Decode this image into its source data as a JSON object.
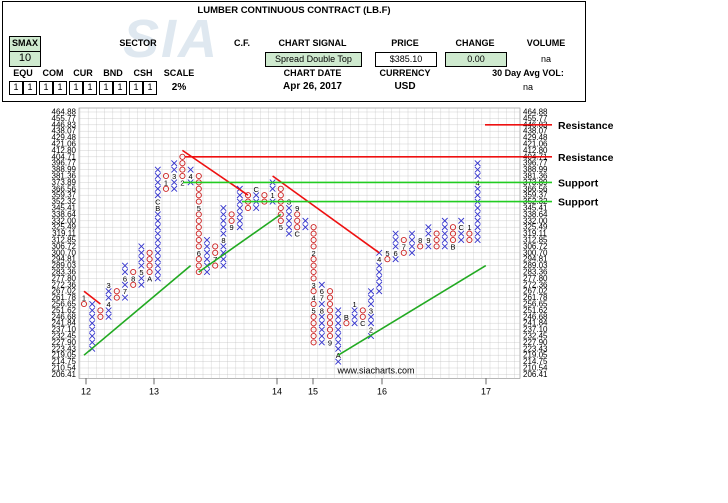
{
  "header": {
    "title": "LUMBER CONTINUOUS CONTRACT (LB.F)",
    "smax_label": "SMAX",
    "smax_value": "10",
    "sector_label": "SECTOR",
    "cf_label": "C.F.",
    "chart_signal_label": "CHART SIGNAL",
    "chart_signal_value": "Spread Double Top",
    "price_label": "PRICE",
    "price_value": "$385.10",
    "change_label": "CHANGE",
    "change_value": "0.00",
    "volume_label": "VOLUME",
    "volume_value": "na",
    "equ_label": "EQU",
    "equ_value": "1",
    "com_label": "COM",
    "com_value": "1",
    "cur_label": "CUR",
    "cur_value": "1",
    "bnd_label": "BND",
    "bnd_value": "1",
    "csh_label": "CSH",
    "csh_value": "1",
    "scale_label": "SCALE",
    "scale_value": "2%",
    "chart_date_label": "CHART DATE",
    "chart_date_value": "Apr 26, 2017",
    "currency_label": "CURRENCY",
    "currency_value": "USD",
    "avg_vol_label": "30 Day Avg VOL:",
    "avg_vol_value": "na"
  },
  "colors": {
    "x_mark": "#3333cc",
    "o_mark": "#cc2222",
    "resistance": "#ee1111",
    "support": "#22cc22",
    "trend": "#22aa22",
    "grid": "#bbbbbb",
    "header_green": "#cfeacf"
  },
  "watermark": "www.siacharts.com",
  "chart_data": {
    "type": "point-and-figure",
    "title": "LUMBER CONTINUOUS CONTRACT (LB.F)",
    "scale": "2%",
    "price_levels": [
      464.88,
      455.77,
      446.83,
      438.07,
      429.48,
      421.06,
      412.8,
      404.71,
      396.77,
      388.99,
      381.36,
      373.89,
      366.56,
      359.37,
      352.32,
      345.41,
      338.64,
      332.0,
      325.49,
      319.11,
      312.85,
      306.72,
      300.7,
      294.81,
      289.03,
      283.36,
      277.8,
      272.36,
      267.02,
      261.78,
      256.65,
      251.62,
      246.68,
      241.84,
      237.1,
      232.45,
      227.9,
      223.43,
      219.05,
      214.75,
      210.54,
      206.41
    ],
    "x_axis_labels": [
      "12",
      "13",
      "14",
      "15",
      "16",
      "17"
    ],
    "columns": [
      {
        "type": "O",
        "top": 261.78,
        "bottom": 256.65,
        "labels": {
          "261.78": "1"
        }
      },
      {
        "type": "X",
        "top": 256.65,
        "bottom": 223.43
      },
      {
        "type": "O",
        "top": 251.62,
        "bottom": 246.68
      },
      {
        "type": "X",
        "top": 272.36,
        "bottom": 246.68,
        "labels": {
          "272.36": "3",
          "256.65": "4"
        }
      },
      {
        "type": "O",
        "top": 267.02,
        "bottom": 261.78
      },
      {
        "type": "X",
        "top": 289.03,
        "bottom": 261.78,
        "labels": {
          "267.02": "7",
          "277.8": "6"
        }
      },
      {
        "type": "O",
        "top": 283.36,
        "bottom": 272.36,
        "labels": {
          "277.8": "8"
        }
      },
      {
        "type": "X",
        "top": 306.72,
        "bottom": 272.36,
        "labels": {
          "283.36": "5"
        }
      },
      {
        "type": "O",
        "top": 300.7,
        "bottom": 277.8,
        "labels": {
          "277.8": "A"
        }
      },
      {
        "type": "X",
        "top": 388.99,
        "bottom": 277.8,
        "labels": {
          "345.41": "B",
          "352.32": "C"
        }
      },
      {
        "type": "O",
        "top": 381.36,
        "bottom": 366.56,
        "labels": {
          "373.89": "1"
        }
      },
      {
        "type": "X",
        "top": 396.77,
        "bottom": 366.56,
        "labels": {
          "381.36": "3"
        }
      },
      {
        "type": "O",
        "top": 404.71,
        "bottom": 373.89,
        "labels": {
          "373.89": "2"
        }
      },
      {
        "type": "X",
        "top": 388.99,
        "bottom": 373.89,
        "labels": {
          "381.36": "4"
        }
      },
      {
        "type": "O",
        "top": 381.36,
        "bottom": 283.36,
        "labels": {
          "345.41": "5",
          "300.7": "6"
        }
      },
      {
        "type": "X",
        "top": 312.85,
        "bottom": 283.36
      },
      {
        "type": "O",
        "top": 306.72,
        "bottom": 289.03,
        "labels": {
          "294.81": "7"
        }
      },
      {
        "type": "X",
        "top": 345.41,
        "bottom": 289.03,
        "labels": {
          "312.85": "8"
        }
      },
      {
        "type": "O",
        "top": 338.64,
        "bottom": 325.49,
        "labels": {
          "332.0": "A",
          "325.49": "9"
        }
      },
      {
        "type": "X",
        "top": 366.56,
        "bottom": 325.49
      },
      {
        "type": "O",
        "top": 359.37,
        "bottom": 345.41
      },
      {
        "type": "X",
        "top": 366.56,
        "bottom": 345.41,
        "labels": {
          "366.56": "C"
        }
      },
      {
        "type": "O",
        "top": 359.37,
        "bottom": 352.32
      },
      {
        "type": "X",
        "top": 373.89,
        "bottom": 352.32,
        "labels": {
          "359.37": "1"
        }
      },
      {
        "type": "O",
        "top": 366.56,
        "bottom": 325.49,
        "labels": {
          "332.0": "4",
          "325.49": "5"
        }
      },
      {
        "type": "X",
        "top": 352.32,
        "bottom": 319.11,
        "labels": {
          "352.32": "3",
          "332.0": "6"
        }
      },
      {
        "type": "O",
        "top": 345.41,
        "bottom": 319.11,
        "labels": {
          "345.41": "9",
          "319.11": "C"
        }
      },
      {
        "type": "X",
        "top": 332.0,
        "bottom": 325.49,
        "labels": {
          "332.0": "B"
        }
      },
      {
        "type": "O",
        "top": 325.49,
        "bottom": 227.9,
        "labels": {
          "300.7": "2",
          "272.36": "3",
          "261.78": "4",
          "251.62": "5"
        }
      },
      {
        "type": "X",
        "top": 272.36,
        "bottom": 227.9,
        "labels": {
          "267.02": "6",
          "261.78": "7",
          "251.62": "8"
        }
      },
      {
        "type": "O",
        "top": 267.02,
        "bottom": 227.9,
        "labels": {
          "227.9": "9"
        }
      },
      {
        "type": "X",
        "top": 251.62,
        "bottom": 214.75,
        "labels": {
          "219.05": "A"
        }
      },
      {
        "type": "O",
        "top": 246.68,
        "bottom": 241.84,
        "labels": {
          "246.68": "B"
        }
      },
      {
        "type": "X",
        "top": 256.65,
        "bottom": 241.84,
        "labels": {
          "256.65": "1"
        }
      },
      {
        "type": "O",
        "top": 251.62,
        "bottom": 241.84,
        "labels": {
          "241.84": "C"
        }
      },
      {
        "type": "X",
        "top": 267.02,
        "bottom": 232.45,
        "labels": {
          "237.1": "2",
          "251.62": "3"
        }
      },
      {
        "type": "X",
        "top": 300.7,
        "bottom": 267.02,
        "labels": {
          "294.81": "4"
        }
      },
      {
        "type": "O",
        "top": 300.7,
        "bottom": 294.81,
        "labels": {
          "300.7": "5"
        }
      },
      {
        "type": "X",
        "top": 319.11,
        "bottom": 294.81,
        "labels": {
          "300.7": "6"
        }
      },
      {
        "type": "O",
        "top": 312.85,
        "bottom": 300.7,
        "labels": {
          "306.72": "7"
        }
      },
      {
        "type": "X",
        "top": 319.11,
        "bottom": 300.7
      },
      {
        "type": "O",
        "top": 312.85,
        "bottom": 306.72,
        "labels": {
          "312.85": "8"
        }
      },
      {
        "type": "X",
        "top": 325.49,
        "bottom": 306.72,
        "labels": {
          "312.85": "9"
        }
      },
      {
        "type": "O",
        "top": 319.11,
        "bottom": 306.72
      },
      {
        "type": "X",
        "top": 332.0,
        "bottom": 306.72,
        "labels": {
          "332.0": "A"
        }
      },
      {
        "type": "O",
        "top": 325.49,
        "bottom": 306.72,
        "labels": {
          "306.72": "B"
        }
      },
      {
        "type": "X",
        "top": 332.0,
        "bottom": 312.85,
        "labels": {
          "325.49": "C"
        }
      },
      {
        "type": "O",
        "top": 325.49,
        "bottom": 312.85,
        "labels": {
          "325.49": "1"
        }
      },
      {
        "type": "X",
        "top": 396.77,
        "bottom": 312.85,
        "labels": {
          "332.0": "2",
          "373.89": "4"
        }
      }
    ],
    "levels": [
      {
        "label": "Resistance",
        "price": 446.83,
        "kind": "resistance"
      },
      {
        "label": "Resistance",
        "price": 404.71,
        "kind": "resistance"
      },
      {
        "label": "Support",
        "price": 373.89,
        "kind": "support"
      },
      {
        "label": "Support",
        "price": 352.32,
        "kind": "support"
      }
    ],
    "trend_lines": [
      {
        "kind": "resistance",
        "from_col": 0,
        "from_price": 267.02,
        "to_col": 2,
        "to_price": 256.65
      },
      {
        "kind": "resistance",
        "from_col": 12,
        "from_price": 412.8,
        "to_col": 20,
        "to_price": 359.37
      },
      {
        "kind": "resistance",
        "from_col": 23,
        "from_price": 381.36,
        "to_col": 36,
        "to_price": 300.7
      },
      {
        "kind": "support",
        "from_col": 0,
        "from_price": 219.05,
        "to_col": 13,
        "to_price": 289.03
      },
      {
        "kind": "support",
        "from_col": 14,
        "from_price": 283.36,
        "to_col": 24,
        "to_price": 338.64
      },
      {
        "kind": "support",
        "from_col": 31,
        "from_price": 219.05,
        "to_col": 49,
        "to_price": 289.03
      }
    ]
  }
}
